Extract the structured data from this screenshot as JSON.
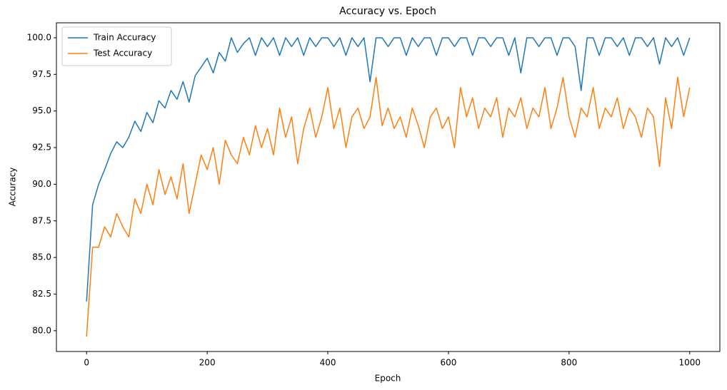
{
  "chart_data": {
    "type": "line",
    "title": "Accuracy vs. Epoch",
    "x_label": "Epoch",
    "y_label": "Accuracy",
    "x": [
      0,
      10,
      20,
      30,
      40,
      50,
      60,
      70,
      80,
      90,
      100,
      110,
      120,
      130,
      140,
      150,
      160,
      170,
      180,
      190,
      200,
      210,
      220,
      230,
      240,
      250,
      260,
      270,
      280,
      290,
      300,
      310,
      320,
      330,
      340,
      350,
      360,
      370,
      380,
      390,
      400,
      410,
      420,
      430,
      440,
      450,
      460,
      470,
      480,
      490,
      500,
      510,
      520,
      530,
      540,
      550,
      560,
      570,
      580,
      590,
      600,
      610,
      620,
      630,
      640,
      650,
      660,
      670,
      680,
      690,
      700,
      710,
      720,
      730,
      740,
      750,
      760,
      770,
      780,
      790,
      800,
      810,
      820,
      830,
      840,
      850,
      860,
      870,
      880,
      890,
      900,
      910,
      920,
      930,
      940,
      950,
      960,
      970,
      980,
      990,
      1000
    ],
    "series": [
      {
        "name": "Train Accuracy",
        "color": "#1f77b4",
        "values": [
          82.0,
          88.6,
          90.0,
          91.0,
          92.1,
          92.9,
          92.5,
          93.2,
          94.3,
          93.6,
          94.9,
          94.2,
          95.7,
          95.2,
          96.4,
          95.8,
          97.0,
          95.6,
          97.4,
          98.0,
          98.6,
          97.6,
          99.0,
          98.4,
          100.0,
          99.0,
          99.6,
          100.0,
          98.8,
          100.0,
          99.4,
          100.0,
          98.8,
          100.0,
          99.4,
          100.0,
          98.8,
          100.0,
          99.4,
          100.0,
          100.0,
          99.4,
          100.0,
          98.8,
          100.0,
          99.4,
          100.0,
          97.0,
          100.0,
          100.0,
          99.4,
          100.0,
          100.0,
          98.8,
          100.0,
          99.4,
          100.0,
          100.0,
          98.8,
          100.0,
          100.0,
          99.4,
          100.0,
          100.0,
          98.8,
          100.0,
          100.0,
          99.4,
          100.0,
          100.0,
          98.8,
          100.0,
          97.6,
          100.0,
          100.0,
          99.4,
          100.0,
          100.0,
          98.8,
          100.0,
          100.0,
          99.4,
          96.4,
          100.0,
          100.0,
          98.8,
          100.0,
          100.0,
          99.4,
          100.0,
          98.8,
          100.0,
          100.0,
          99.4,
          100.0,
          98.2,
          100.0,
          99.4,
          100.0,
          98.8,
          100.0
        ]
      },
      {
        "name": "Test Accuracy",
        "color": "#ff7f0e",
        "values": [
          79.6,
          85.7,
          85.7,
          87.1,
          86.4,
          88.0,
          87.1,
          86.4,
          89.0,
          88.0,
          90.0,
          88.6,
          91.0,
          89.3,
          90.5,
          89.0,
          91.4,
          88.0,
          90.0,
          92.0,
          91.0,
          92.5,
          90.0,
          93.0,
          92.0,
          91.4,
          93.2,
          92.0,
          94.0,
          92.5,
          93.8,
          92.0,
          95.2,
          93.2,
          94.6,
          91.4,
          93.8,
          95.2,
          93.2,
          94.6,
          96.6,
          93.8,
          95.2,
          92.5,
          94.6,
          95.2,
          93.8,
          94.6,
          97.3,
          94.0,
          95.2,
          93.8,
          94.6,
          93.2,
          95.2,
          94.0,
          92.5,
          94.6,
          95.2,
          93.8,
          94.6,
          92.5,
          96.6,
          94.6,
          95.9,
          93.8,
          95.2,
          94.6,
          95.9,
          93.2,
          95.2,
          94.6,
          95.9,
          93.8,
          95.2,
          94.6,
          96.6,
          93.8,
          95.2,
          97.3,
          94.6,
          93.2,
          95.2,
          94.6,
          96.6,
          93.8,
          95.2,
          94.6,
          95.9,
          93.8,
          95.2,
          94.6,
          93.2,
          95.2,
          94.6,
          91.2,
          95.9,
          93.8,
          97.3,
          94.6,
          96.6
        ]
      }
    ],
    "xlim": [
      -50,
      1050
    ],
    "ylim": [
      78.58,
      101.02
    ],
    "xticks": [
      0,
      200,
      400,
      600,
      800,
      1000
    ],
    "yticks": [
      {
        "value": 80,
        "label": "80.0"
      },
      {
        "value": 82.5,
        "label": "82.5"
      },
      {
        "value": 85,
        "label": "85.0"
      },
      {
        "value": 87.5,
        "label": "87.5"
      },
      {
        "value": 90,
        "label": "90.0"
      },
      {
        "value": 92.5,
        "label": "92.5"
      },
      {
        "value": 95,
        "label": "95.0"
      },
      {
        "value": 97.5,
        "label": "97.5"
      },
      {
        "value": 100,
        "label": "100.0"
      }
    ],
    "grid": false,
    "legend": "upper left"
  }
}
